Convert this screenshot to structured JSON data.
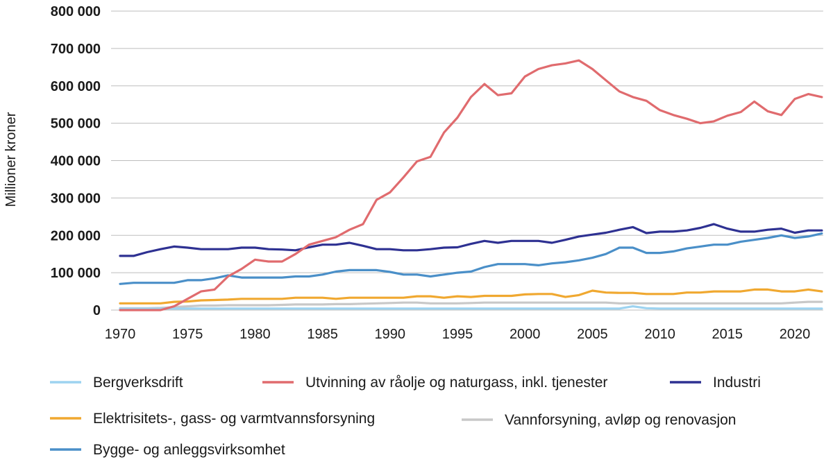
{
  "chart_data": {
    "type": "line",
    "title": "",
    "ylabel": "Millioner kroner",
    "xlabel": "",
    "x": [
      1970,
      1971,
      1972,
      1973,
      1974,
      1975,
      1976,
      1977,
      1978,
      1979,
      1980,
      1981,
      1982,
      1983,
      1984,
      1985,
      1986,
      1987,
      1988,
      1989,
      1990,
      1991,
      1992,
      1993,
      1994,
      1995,
      1996,
      1997,
      1998,
      1999,
      2000,
      2001,
      2002,
      2003,
      2004,
      2005,
      2006,
      2007,
      2008,
      2009,
      2010,
      2011,
      2012,
      2013,
      2014,
      2015,
      2016,
      2017,
      2018,
      2019,
      2020,
      2021,
      2022
    ],
    "xlim": [
      1970,
      2022
    ],
    "ylim": [
      0,
      800000
    ],
    "yticks": [
      0,
      100000,
      200000,
      300000,
      400000,
      500000,
      600000,
      700000,
      800000
    ],
    "ytick_labels": [
      "0",
      "100 000",
      "200 000",
      "300 000",
      "400 000",
      "500 000",
      "600 000",
      "700 000",
      "800 000"
    ],
    "xticks": [
      1970,
      1975,
      1980,
      1985,
      1990,
      1995,
      2000,
      2005,
      2010,
      2015,
      2020
    ],
    "xtick_labels": [
      "1970",
      "1975",
      "1980",
      "1985",
      "1990",
      "1995",
      "2000",
      "2005",
      "2010",
      "2015",
      "2020"
    ],
    "grid": "horizontal",
    "legend_position": "bottom",
    "series": [
      {
        "name": "Bergverksdrift",
        "color": "#9dd3f0",
        "values": [
          4000,
          4000,
          4000,
          4000,
          4000,
          4000,
          4000,
          4000,
          4000,
          4000,
          4000,
          4000,
          4000,
          4000,
          4000,
          4000,
          4000,
          4000,
          4000,
          4000,
          4000,
          4000,
          4000,
          4000,
          4000,
          4000,
          4000,
          4000,
          4000,
          4000,
          4000,
          4000,
          4000,
          4000,
          4000,
          4000,
          4000,
          4000,
          10000,
          5000,
          4000,
          4000,
          4000,
          4000,
          4000,
          4000,
          4000,
          4000,
          4000,
          4000,
          4000,
          4000,
          4000
        ]
      },
      {
        "name": "Utvinning av råolje og naturgass, inkl. tjenester",
        "color": "#e06b6e",
        "values": [
          0,
          0,
          0,
          0,
          10000,
          30000,
          50000,
          55000,
          90000,
          110000,
          135000,
          130000,
          130000,
          150000,
          175000,
          185000,
          195000,
          215000,
          230000,
          295000,
          315000,
          355000,
          398000,
          410000,
          475000,
          515000,
          570000,
          605000,
          575000,
          580000,
          625000,
          645000,
          655000,
          660000,
          668000,
          645000,
          615000,
          585000,
          570000,
          560000,
          535000,
          522000,
          512000,
          500000,
          505000,
          520000,
          530000,
          558000,
          532000,
          522000,
          565000,
          578000,
          570000
        ]
      },
      {
        "name": "Industri",
        "color": "#2e3192",
        "values": [
          145000,
          145000,
          155000,
          163000,
          170000,
          167000,
          163000,
          163000,
          163000,
          167000,
          167000,
          163000,
          162000,
          160000,
          168000,
          175000,
          175000,
          180000,
          172000,
          163000,
          163000,
          160000,
          160000,
          163000,
          167000,
          168000,
          177000,
          185000,
          180000,
          185000,
          185000,
          185000,
          180000,
          188000,
          197000,
          202000,
          207000,
          215000,
          222000,
          206000,
          210000,
          210000,
          213000,
          220000,
          230000,
          218000,
          210000,
          210000,
          215000,
          218000,
          207000,
          213000,
          213000
        ]
      },
      {
        "name": "Elektrisitets-, gass- og varmtvannsforsyning",
        "color": "#f0a830",
        "values": [
          18000,
          18000,
          18000,
          18000,
          22000,
          23000,
          26000,
          27000,
          28000,
          30000,
          30000,
          30000,
          30000,
          33000,
          33000,
          33000,
          30000,
          33000,
          33000,
          33000,
          33000,
          33000,
          37000,
          37000,
          33000,
          37000,
          35000,
          38000,
          38000,
          38000,
          42000,
          43000,
          43000,
          35000,
          40000,
          52000,
          47000,
          46000,
          46000,
          43000,
          43000,
          43000,
          47000,
          47000,
          50000,
          50000,
          50000,
          55000,
          55000,
          50000,
          50000,
          55000,
          50000
        ]
      },
      {
        "name": "Vannforsyning, avløp og renovasjon",
        "color": "#c8c8c8",
        "values": [
          5000,
          5000,
          5000,
          6000,
          8000,
          10000,
          12000,
          12000,
          13000,
          13000,
          13000,
          13000,
          14000,
          15000,
          15000,
          15000,
          16000,
          16000,
          17000,
          18000,
          19000,
          20000,
          20000,
          18000,
          18000,
          18000,
          19000,
          20000,
          20000,
          20000,
          20000,
          20000,
          20000,
          20000,
          20000,
          20000,
          20000,
          18000,
          18000,
          18000,
          18000,
          18000,
          18000,
          18000,
          18000,
          18000,
          18000,
          18000,
          18000,
          18000,
          20000,
          22000,
          22000
        ]
      },
      {
        "name": "Bygge- og anleggsvirksomhet",
        "color": "#4a8fc8",
        "values": [
          70000,
          73000,
          73000,
          73000,
          73000,
          80000,
          80000,
          85000,
          93000,
          87000,
          87000,
          87000,
          87000,
          90000,
          90000,
          95000,
          103000,
          107000,
          107000,
          107000,
          102000,
          95000,
          95000,
          90000,
          95000,
          100000,
          103000,
          115000,
          123000,
          123000,
          123000,
          120000,
          125000,
          128000,
          133000,
          140000,
          150000,
          167000,
          167000,
          153000,
          153000,
          157000,
          165000,
          170000,
          175000,
          175000,
          183000,
          188000,
          193000,
          200000,
          193000,
          197000,
          205000
        ]
      }
    ]
  }
}
